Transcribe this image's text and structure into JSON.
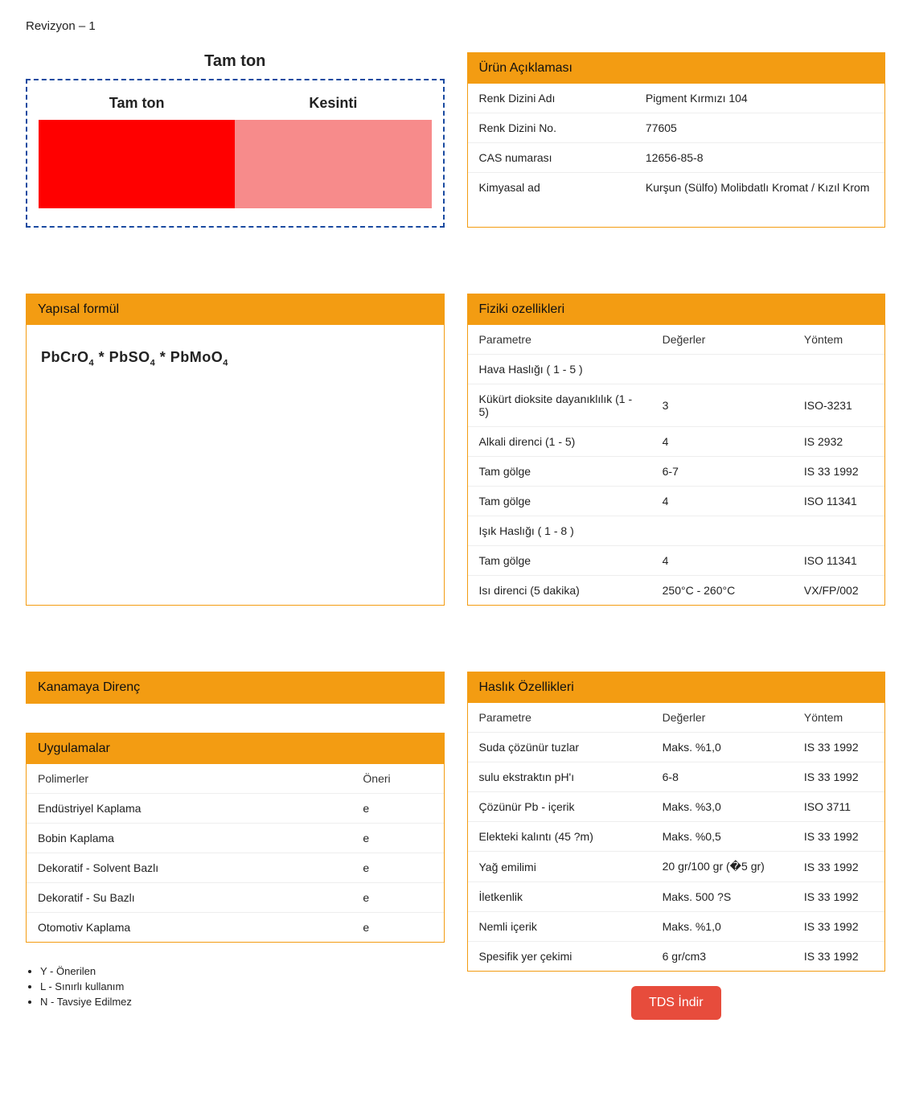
{
  "revision": "Revizyon – 1",
  "swatch": {
    "title": "Tam ton",
    "full_label": "Tam ton",
    "tint_label": "Kesinti",
    "full_color": "#ff0000",
    "tint_color": "#f78b8b",
    "border_color": "#1a4aa0"
  },
  "product_desc": {
    "header": "Ürün Açıklaması",
    "rows": [
      {
        "label": "Renk Dizini Adı",
        "value": "Pigment Kırmızı 104"
      },
      {
        "label": "Renk Dizini No.",
        "value": "77605"
      },
      {
        "label": "CAS numarası",
        "value": "12656-85-8"
      },
      {
        "label": "Kimyasal ad",
        "value": "Kurşun (Sülfo) Molibdatlı Kromat / Kızıl Krom"
      }
    ]
  },
  "structural_formula": {
    "header": "Yapısal formül",
    "formula_html": "PbCrO<sub>4</sub> * PbSO<sub>4</sub> * PbMoO<sub>4</sub>"
  },
  "physical": {
    "header": "Fiziki ozellikleri",
    "col1": "Parametre",
    "col2": "Değerler",
    "col3": "Yöntem",
    "rows": [
      {
        "p": "Hava Haslığı ( 1 - 5 )",
        "v": "",
        "m": ""
      },
      {
        "p": "Kükürt dioksite dayanıklılık (1 - 5)",
        "v": "3",
        "m": "ISO-3231"
      },
      {
        "p": "Alkali direnci (1 - 5)",
        "v": "4",
        "m": "IS 2932"
      },
      {
        "p": "Tam gölge",
        "v": "6-7",
        "m": "IS 33 1992"
      },
      {
        "p": "Tam gölge",
        "v": "4",
        "m": "ISO 11341"
      },
      {
        "p": "Işık Haslığı ( 1 - 8 )",
        "v": "",
        "m": ""
      },
      {
        "p": "Tam gölge",
        "v": "4",
        "m": "ISO 11341"
      },
      {
        "p": "Isı direnci (5 dakika)",
        "v": "250°C - 260°C",
        "m": "VX/FP/002"
      }
    ]
  },
  "bleed": {
    "header": "Kanamaya Direnç"
  },
  "applications": {
    "header": "Uygulamalar",
    "col1": "Polimerler",
    "col2": "Öneri",
    "rows": [
      {
        "p": "Endüstriyel Kaplama",
        "v": "e"
      },
      {
        "p": "Bobin Kaplama",
        "v": "e"
      },
      {
        "p": "Dekoratif - Solvent Bazlı",
        "v": "e"
      },
      {
        "p": "Dekoratif - Su Bazlı",
        "v": "e"
      },
      {
        "p": "Otomotiv Kaplama",
        "v": "e"
      }
    ]
  },
  "fastness": {
    "header": "Haslık Özellikleri",
    "col1": "Parametre",
    "col2": "Değerler",
    "col3": "Yöntem",
    "rows": [
      {
        "p": "Suda çözünür tuzlar",
        "v": "Maks. %1,0",
        "m": "IS 33 1992"
      },
      {
        "p": "sulu ekstraktın pH'ı",
        "v": "6-8",
        "m": "IS 33 1992"
      },
      {
        "p": "Çözünür Pb - içerik",
        "v": "Maks. %3,0",
        "m": "ISO 3711"
      },
      {
        "p": "Elekteki kalıntı (45 ?m)",
        "v": "Maks. %0,5",
        "m": "IS 33 1992"
      },
      {
        "p": "Yağ emilimi",
        "v": "20 gr/100 gr (�5 gr)",
        "m": "IS 33 1992"
      },
      {
        "p": "İletkenlik",
        "v": "Maks. 500 ?S",
        "m": "IS 33 1992"
      },
      {
        "p": "Nemli içerik",
        "v": "Maks. %1,0",
        "m": "IS 33 1992"
      },
      {
        "p": "Spesifik yer çekimi",
        "v": "6 gr/cm3",
        "m": "IS 33 1992"
      }
    ]
  },
  "legend": [
    "Y - Önerilen",
    "L - Sınırlı kullanım",
    "N - Tavsiye Edilmez"
  ],
  "download_label": "TDS İndir",
  "colors": {
    "header_bg": "#f39c12",
    "border": "#f39c12",
    "btn_bg": "#e74c3c"
  }
}
